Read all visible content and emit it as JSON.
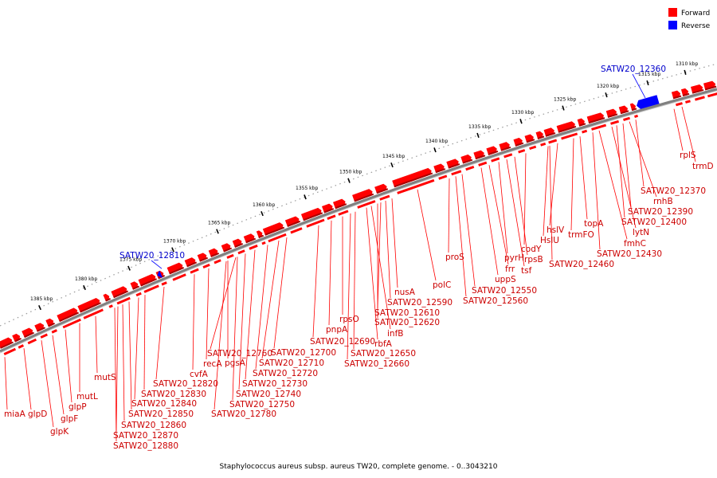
{
  "legend": {
    "forward_label": "Forward",
    "reverse_label": "Reverse",
    "forward_color": "#ff0000",
    "reverse_color": "#0000ff"
  },
  "caption": "Staphylococcus aureus subsp. aureus TW20, complete genome. - 0..3043210",
  "axis_ticks": [
    "1310 kbp",
    "1315 kbp",
    "1320 kbp",
    "1325 kbp",
    "1330 kbp",
    "1335 kbp",
    "1340 kbp",
    "1345 kbp",
    "1350 kbp",
    "1355 kbp",
    "1360 kbp",
    "1365 kbp",
    "1370 kbp",
    "1375 kbp",
    "1380 kbp",
    "1385 kbp"
  ],
  "forward_genes": [
    "rplS",
    "trmD",
    "SATW20_12370",
    "rnhB",
    "SATW20_12390",
    "SATW20_12400",
    "lytN",
    "fmhC",
    "SATW20_12430",
    "topA",
    "trmFO",
    "hslV",
    "HslU",
    "SATW20_12460",
    "codY",
    "rpsB",
    "tsf",
    "pyrH",
    "frr",
    "uppS",
    "proS",
    "SATW20_12550",
    "SATW20_12560",
    "polC",
    "nusA",
    "SATW20_12590",
    "SATW20_12610",
    "SATW20_12620",
    "infB",
    "rbfA",
    "rpsO",
    "SATW20_12650",
    "SATW20_12660",
    "pnpA",
    "SATW20_12690",
    "SATW20_12700",
    "SATW20_12710",
    "SATW20_12720",
    "SATW20_12730",
    "SATW20_12740",
    "SATW20_12750",
    "SATW20_12760",
    "SATW20_12780",
    "pgsA",
    "recA",
    "cvfA",
    "SATW20_12820",
    "SATW20_12830",
    "SATW20_12840",
    "SATW20_12850",
    "SATW20_12860",
    "SATW20_12870",
    "SATW20_12880",
    "mutS",
    "mutL",
    "glpP",
    "glpF",
    "glpK",
    "glpD",
    "miaA"
  ],
  "reverse_genes": [
    "SATW20_12360",
    "SATW20_12810"
  ]
}
